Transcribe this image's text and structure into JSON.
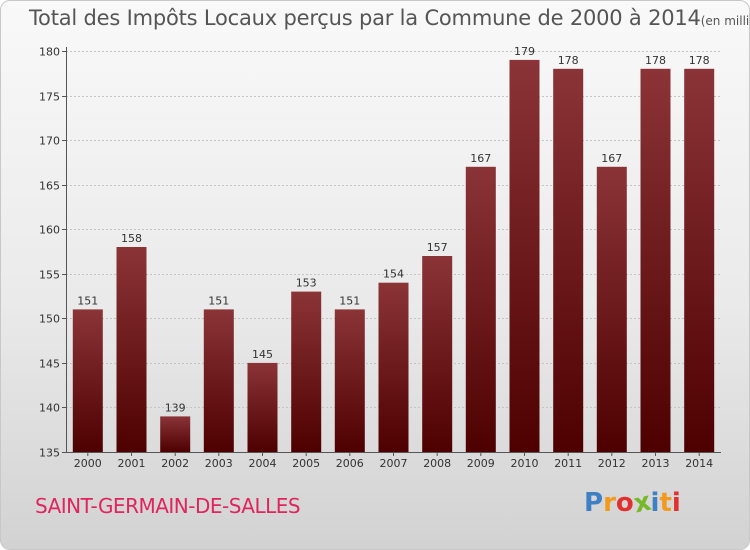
{
  "header": {
    "title": "Total des Impôts Locaux perçus par la Commune de 2000 à 2014",
    "subtitle": "(en milliers d'€)"
  },
  "commune": "SAINT-GERMAIN-DE-SALLES",
  "logo": {
    "text": "Proxiti",
    "letters": [
      "P",
      "r",
      "o",
      "x",
      "i",
      "t",
      "i"
    ]
  },
  "colors": {
    "bar_top": "#8b3438",
    "bar_bottom": "#4e0000",
    "commune": "#e0245e",
    "logo": [
      "#3f7fc4",
      "#f29a1e",
      "#e0312f",
      "#77b82a",
      "#3f7fc4",
      "#f29a1e",
      "#e0312f"
    ]
  },
  "chart_data": {
    "type": "bar",
    "title": "Total des Impôts Locaux perçus par la Commune de 2000 à 2014",
    "unit": "en milliers d'€",
    "categories": [
      "2000",
      "2001",
      "2002",
      "2003",
      "2004",
      "2005",
      "2006",
      "2007",
      "2008",
      "2009",
      "2010",
      "2011",
      "2012",
      "2013",
      "2014"
    ],
    "values": [
      151,
      158,
      139,
      151,
      145,
      153,
      151,
      154,
      157,
      167,
      179,
      178,
      167,
      178,
      178
    ],
    "ylim": [
      135,
      180
    ],
    "yticks": [
      135,
      140,
      145,
      150,
      155,
      160,
      165,
      170,
      175,
      180
    ],
    "grid": true,
    "xlabel": "",
    "ylabel": ""
  }
}
